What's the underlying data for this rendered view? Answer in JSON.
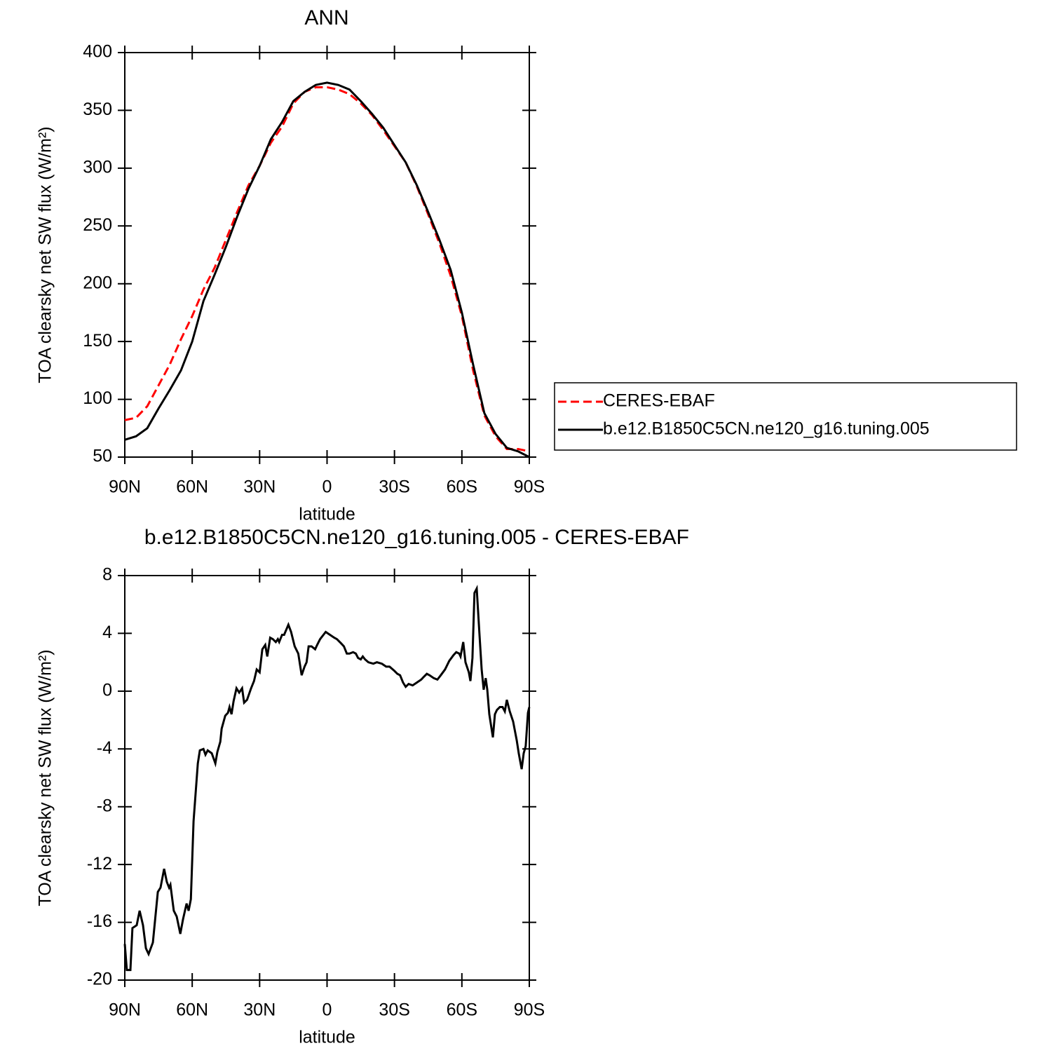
{
  "chart_data": [
    {
      "type": "line",
      "title": "ANN",
      "xlabel": "latitude",
      "ylabel": "TOA clearsky net SW flux (W/m²)",
      "xlim": [
        90,
        -90
      ],
      "xticks": [
        {
          "value": 90,
          "label": "90N"
        },
        {
          "value": 60,
          "label": "60N"
        },
        {
          "value": 30,
          "label": "30N"
        },
        0,
        {
          "value": -30,
          "label": "30S"
        },
        {
          "value": -60,
          "label": "60S"
        },
        {
          "value": -90,
          "label": "90S"
        }
      ],
      "ylim": [
        50,
        400
      ],
      "yticks": [
        50,
        100,
        150,
        200,
        250,
        300,
        350,
        400
      ],
      "legend": "right",
      "x": [
        90,
        85,
        80,
        75,
        70,
        65,
        60,
        55,
        50,
        45,
        40,
        35,
        30,
        25,
        20,
        15,
        10,
        5,
        0,
        -5,
        -10,
        -15,
        -20,
        -25,
        -30,
        -35,
        -40,
        -45,
        -50,
        -55,
        -60,
        -65,
        -70,
        -75,
        -80,
        -85,
        -90
      ],
      "series": [
        {
          "name": "CERES-EBAF",
          "color": "#ff0000",
          "dashed": true,
          "values": [
            82,
            84,
            94,
            112,
            130,
            152,
            172,
            195,
            214,
            238,
            262,
            285,
            302,
            322,
            336,
            356,
            366,
            370,
            370,
            368,
            364,
            356,
            346,
            333,
            319,
            305,
            284,
            260,
            235,
            207,
            172,
            125,
            86,
            68,
            57,
            57,
            55
          ]
        },
        {
          "name": "b.e12.B1850C5CN.ne120_g16.tuning.005",
          "color": "#000000",
          "dashed": false,
          "values": [
            65,
            68,
            75,
            92,
            108,
            125,
            150,
            185,
            208,
            232,
            258,
            282,
            302,
            325,
            340,
            358,
            366,
            372,
            374,
            372,
            368,
            358,
            347,
            335,
            320,
            305,
            285,
            262,
            238,
            212,
            175,
            130,
            88,
            70,
            58,
            55,
            50
          ]
        }
      ]
    },
    {
      "type": "line",
      "title": "b.e12.B1850C5CN.ne120_g16.tuning.005 - CERES-EBAF",
      "xlabel": "latitude",
      "ylabel": "TOA clearsky net SW flux (W/m²)",
      "xlim": [
        90,
        -90
      ],
      "xticks": [
        {
          "value": 90,
          "label": "90N"
        },
        {
          "value": 60,
          "label": "60N"
        },
        {
          "value": 30,
          "label": "30N"
        },
        0,
        {
          "value": -30,
          "label": "30S"
        },
        {
          "value": -60,
          "label": "60S"
        },
        {
          "value": -90,
          "label": "90S"
        }
      ],
      "ylim": [
        -20,
        8
      ],
      "yticks": [
        -20,
        -16,
        -12,
        -8,
        -4,
        0,
        4,
        8
      ],
      "x": [
        90,
        89.1,
        87.5,
        86.6,
        84.7,
        83.4,
        81.9,
        80.6,
        79.4,
        77.5,
        75.3,
        74.1,
        72.5,
        71.3,
        70.3,
        69.7,
        68.2,
        66.9,
        65.3,
        64.1,
        62.5,
        61.6,
        60.6,
        59.4,
        57.5,
        56.6,
        55.0,
        54.1,
        53.1,
        51.3,
        49.7,
        48.8,
        47.5,
        46.9,
        45.3,
        44.1,
        43.4,
        42.5,
        41.6,
        40.3,
        39.1,
        37.8,
        36.9,
        35.6,
        33.8,
        32.5,
        31.3,
        30.0,
        28.8,
        27.5,
        26.6,
        25.3,
        24.1,
        22.8,
        21.9,
        21.3,
        20.0,
        19.1,
        17.2,
        16.0,
        14.4,
        12.8,
        11.3,
        10.0,
        9.1,
        8.2,
        6.9,
        5.3,
        4.4,
        3.1,
        1.6,
        0.6,
        -1.3,
        -3.2,
        -4.4,
        -6.3,
        -7.5,
        -8.8,
        -10.0,
        -11.6,
        -12.8,
        -13.8,
        -15.0,
        -15.9,
        -16.9,
        -18.4,
        -20.6,
        -22.2,
        -24.4,
        -26.3,
        -27.8,
        -30.0,
        -31.3,
        -32.5,
        -33.8,
        -35.0,
        -36.3,
        -38.1,
        -40.0,
        -41.9,
        -43.1,
        -44.4,
        -45.6,
        -47.5,
        -49.1,
        -50.6,
        -52.5,
        -54.4,
        -56.3,
        -57.5,
        -58.8,
        -59.4,
        -60.6,
        -61.6,
        -63.1,
        -63.8,
        -64.7,
        -65.6,
        -66.6,
        -67.8,
        -68.8,
        -69.7,
        -70.6,
        -71.3,
        -72.2,
        -73.2,
        -73.8,
        -74.7,
        -75.6,
        -76.9,
        -78.1,
        -79.1,
        -80.0,
        -81.3,
        -82.8,
        -84.4,
        -85.3,
        -86.6,
        -87.5,
        -88.4,
        -89.4,
        -90
      ],
      "series": [
        {
          "color": "#000000",
          "values": [
            -17.5,
            -19.3,
            -19.3,
            -16.4,
            -16.2,
            -15.2,
            -16.2,
            -17.8,
            -18.2,
            -17.4,
            -13.9,
            -13.6,
            -12.3,
            -13.2,
            -13.6,
            -13.4,
            -15.2,
            -15.6,
            -16.8,
            -15.8,
            -14.7,
            -15.2,
            -14.4,
            -9,
            -5,
            -4.1,
            -4,
            -4.4,
            -4.1,
            -4.3,
            -5,
            -4.2,
            -3.5,
            -2.6,
            -1.7,
            -1.5,
            -1.1,
            -1.6,
            -0.7,
            0.2,
            -0.1,
            0.2,
            -0.8,
            -0.6,
            0.2,
            0.7,
            1.5,
            1.3,
            2.9,
            3.2,
            2.4,
            3.7,
            3.6,
            3.4,
            3.6,
            3.4,
            3.9,
            3.9,
            4.6,
            4.1,
            3.1,
            2.6,
            1.1,
            1.7,
            2.0,
            3.1,
            3.1,
            2.9,
            3.2,
            3.6,
            3.9,
            4.1,
            3.9,
            3.7,
            3.6,
            3.3,
            3.1,
            2.6,
            2.6,
            2.7,
            2.6,
            2.3,
            2.2,
            2.4,
            2.2,
            2.0,
            1.9,
            2.0,
            1.9,
            1.7,
            1.7,
            1.4,
            1.2,
            1.1,
            0.6,
            0.3,
            0.5,
            0.4,
            0.6,
            0.8,
            1.0,
            1.2,
            1.1,
            0.9,
            0.8,
            1.1,
            1.5,
            2.1,
            2.5,
            2.7,
            2.6,
            2.4,
            3.4,
            2.0,
            1.3,
            0.7,
            2.3,
            6.8,
            7.1,
            4.0,
            1.5,
            0.1,
            0.9,
            0.1,
            -1.6,
            -2.6,
            -3.2,
            -1.6,
            -1.3,
            -1.1,
            -1.1,
            -1.4,
            -0.6,
            -1.4,
            -2.1,
            -3.4,
            -4.3,
            -5.4,
            -4.3,
            -3.8,
            -1.5,
            -1.1
          ]
        }
      ]
    }
  ]
}
